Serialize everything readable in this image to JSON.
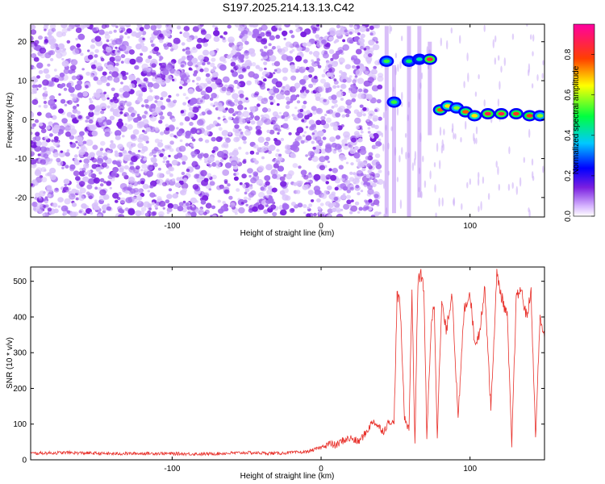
{
  "title": "S197.2025.214.13.13.C42",
  "chart_data": [
    {
      "type": "heatmap",
      "xlabel": "Height of straight line (km)",
      "ylabel": "Frequency (Hz)",
      "xlim": [
        -195,
        150
      ],
      "ylim": [
        -25,
        24.5
      ],
      "xticks": [
        -100,
        0,
        100
      ],
      "yticks": [
        -20,
        -10,
        0,
        10,
        20
      ],
      "colorbar": {
        "label": "Normalized spectral amplitude",
        "range": [
          0,
          0.95
        ],
        "ticks": [
          "0.0",
          "0.2",
          "0.4",
          "0.6",
          "0.8"
        ]
      },
      "features": [
        {
          "x": 44,
          "y": 15,
          "level": 0.55
        },
        {
          "x": 49,
          "y": 4.5,
          "level": 0.55
        },
        {
          "x": 59,
          "y": 15,
          "level": 0.5
        },
        {
          "x": 66,
          "y": 15.5,
          "level": 0.45
        },
        {
          "x": 73,
          "y": 15.5,
          "level": 0.9
        },
        {
          "x": 80,
          "y": 2.5,
          "level": 0.8
        },
        {
          "x": 85,
          "y": 3.5,
          "level": 0.7
        },
        {
          "x": 91,
          "y": 3,
          "level": 0.6
        },
        {
          "x": 97,
          "y": 2,
          "level": 0.8
        },
        {
          "x": 103,
          "y": 1,
          "level": 0.7
        },
        {
          "x": 112,
          "y": 1.5,
          "level": 0.9
        },
        {
          "x": 121,
          "y": 1.5,
          "level": 0.9
        },
        {
          "x": 131,
          "y": 1.5,
          "level": 0.85
        },
        {
          "x": 140,
          "y": 1,
          "level": 0.85
        },
        {
          "x": 147,
          "y": 1,
          "level": 0.6
        }
      ]
    },
    {
      "type": "line",
      "xlabel": "Height of straight line (km)",
      "ylabel": "SNR (10 * v/v)",
      "xlim": [
        -195,
        150
      ],
      "ylim": [
        0,
        540
      ],
      "xticks": [
        -100,
        0,
        100
      ],
      "yticks": [
        0,
        100,
        200,
        300,
        400,
        500
      ],
      "series": [
        {
          "color": "#e8302a",
          "x": [
            -195,
            -170,
            -140,
            -110,
            -80,
            -50,
            -30,
            -10,
            -5,
            0,
            5,
            10,
            15,
            20,
            25,
            30,
            35,
            38,
            42,
            46,
            49,
            51,
            53,
            56,
            59,
            61,
            63,
            65,
            67,
            69,
            71,
            74,
            76,
            78,
            81,
            84,
            88,
            92,
            96,
            100,
            103,
            106,
            110,
            114,
            118,
            121,
            125,
            128,
            131,
            134,
            138,
            141,
            144,
            147,
            150
          ],
          "y": [
            18,
            20,
            17,
            18,
            16,
            20,
            18,
            22,
            28,
            35,
            45,
            40,
            55,
            60,
            50,
            75,
            110,
            95,
            80,
            110,
            100,
            460,
            440,
            120,
            85,
            470,
            45,
            500,
            520,
            480,
            60,
            390,
            430,
            70,
            440,
            360,
            470,
            110,
            420,
            470,
            330,
            350,
            480,
            140,
            520,
            460,
            400,
            40,
            450,
            480,
            400,
            470,
            60,
            400,
            340
          ]
        }
      ]
    }
  ]
}
